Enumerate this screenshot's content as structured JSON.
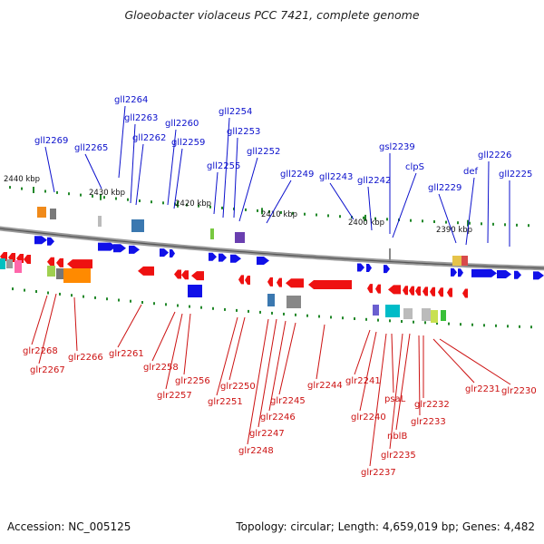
{
  "title": "Gloeobacter violaceus PCC 7421, complete genome",
  "footer": {
    "accession": "Accession: NC_005125",
    "topology": "Topology: circular; Length: 4,659,019 bp; Genes: 4,482"
  },
  "scale_labels": [
    "2440 kbp",
    "2430 kbp",
    "2420 kbp",
    "2410 kbp",
    "2400 kbp",
    "2390 kbp"
  ],
  "forward_genes": [
    "gll2269",
    "gll2265",
    "gll2264",
    "gll2263",
    "gll2262",
    "gll2260",
    "gll2259",
    "gll2255",
    "gll2254",
    "gll2253",
    "gll2252",
    "gll2249",
    "gll2243",
    "gll2242",
    "gsl2239",
    "clpS",
    "gll2229",
    "def",
    "gll2226",
    "gll2225"
  ],
  "reverse_genes": [
    "glr2268",
    "glr2267",
    "glr2266",
    "glr2261",
    "glr2258",
    "glr2257",
    "glr2256",
    "glr2251",
    "glr2250",
    "glr2248",
    "glr2247",
    "glr2246",
    "glr2245",
    "glr2244",
    "glr2241",
    "glr2240",
    "glr2237",
    "psaL",
    "glr2235",
    "nblB",
    "glr2233",
    "glr2232",
    "glr2231",
    "glr2230"
  ],
  "colors": {
    "forward": "#0b10cc",
    "reverse": "#cc1111",
    "gene_fwd": "#1010e8",
    "gene_rev": "#ee1111",
    "tick": "#22882a",
    "backbone": "#777777"
  }
}
